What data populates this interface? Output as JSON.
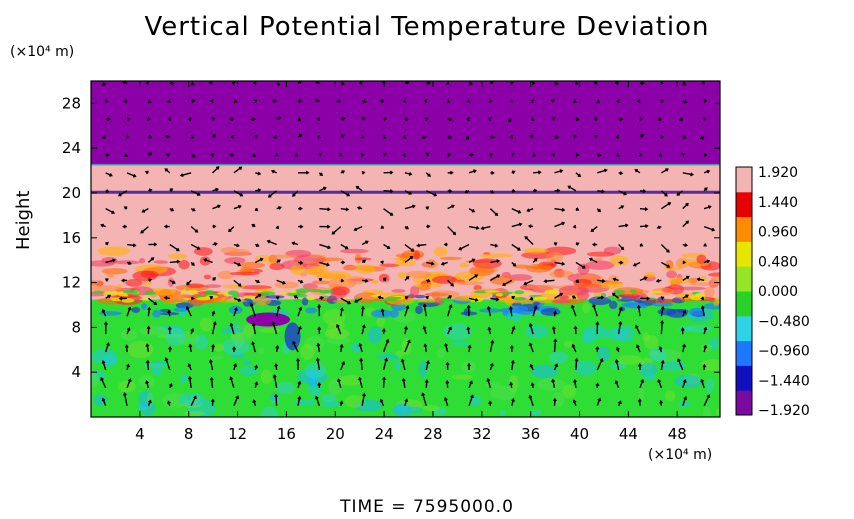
{
  "chart_data": {
    "type": "heatmap",
    "title": "Vertical Potential Temperature Deviation",
    "ylabel": "Height",
    "y_unit": "(×10⁴ m)",
    "x_unit": "(×10⁴ m)",
    "x_ticks": [
      4,
      8,
      12,
      16,
      20,
      24,
      28,
      32,
      36,
      40,
      44,
      48
    ],
    "y_ticks": [
      4,
      8,
      12,
      16,
      20,
      24,
      28
    ],
    "xlim": [
      0,
      51.5
    ],
    "ylim": [
      0,
      30
    ],
    "colorbar": {
      "ticks": [
        "1.920",
        "1.440",
        "0.960",
        "0.480",
        "0.000",
        "−0.480",
        "−0.960",
        "−1.440",
        "−1.920"
      ],
      "range": [
        -1.92,
        1.92
      ],
      "colors": [
        "#7a0aa0",
        "#1010c0",
        "#1e78ff",
        "#30d2e6",
        "#28d228",
        "#96e628",
        "#e6e600",
        "#ff8c00",
        "#e60000",
        "#f5b4b4"
      ]
    },
    "regions": [
      {
        "y_from": 22.5,
        "y_to": 30,
        "value": -1.92,
        "color": "#8c00a8"
      },
      {
        "y_from": 10.5,
        "y_to": 22.5,
        "value": 1.92,
        "color": "#f5b4b4"
      },
      {
        "y_from": 0,
        "y_to": 10.5,
        "value": 0.1,
        "color": "#2ede34"
      }
    ],
    "vectors": true
  },
  "footer": {
    "time_label": "TIME  =  7595000.0"
  }
}
